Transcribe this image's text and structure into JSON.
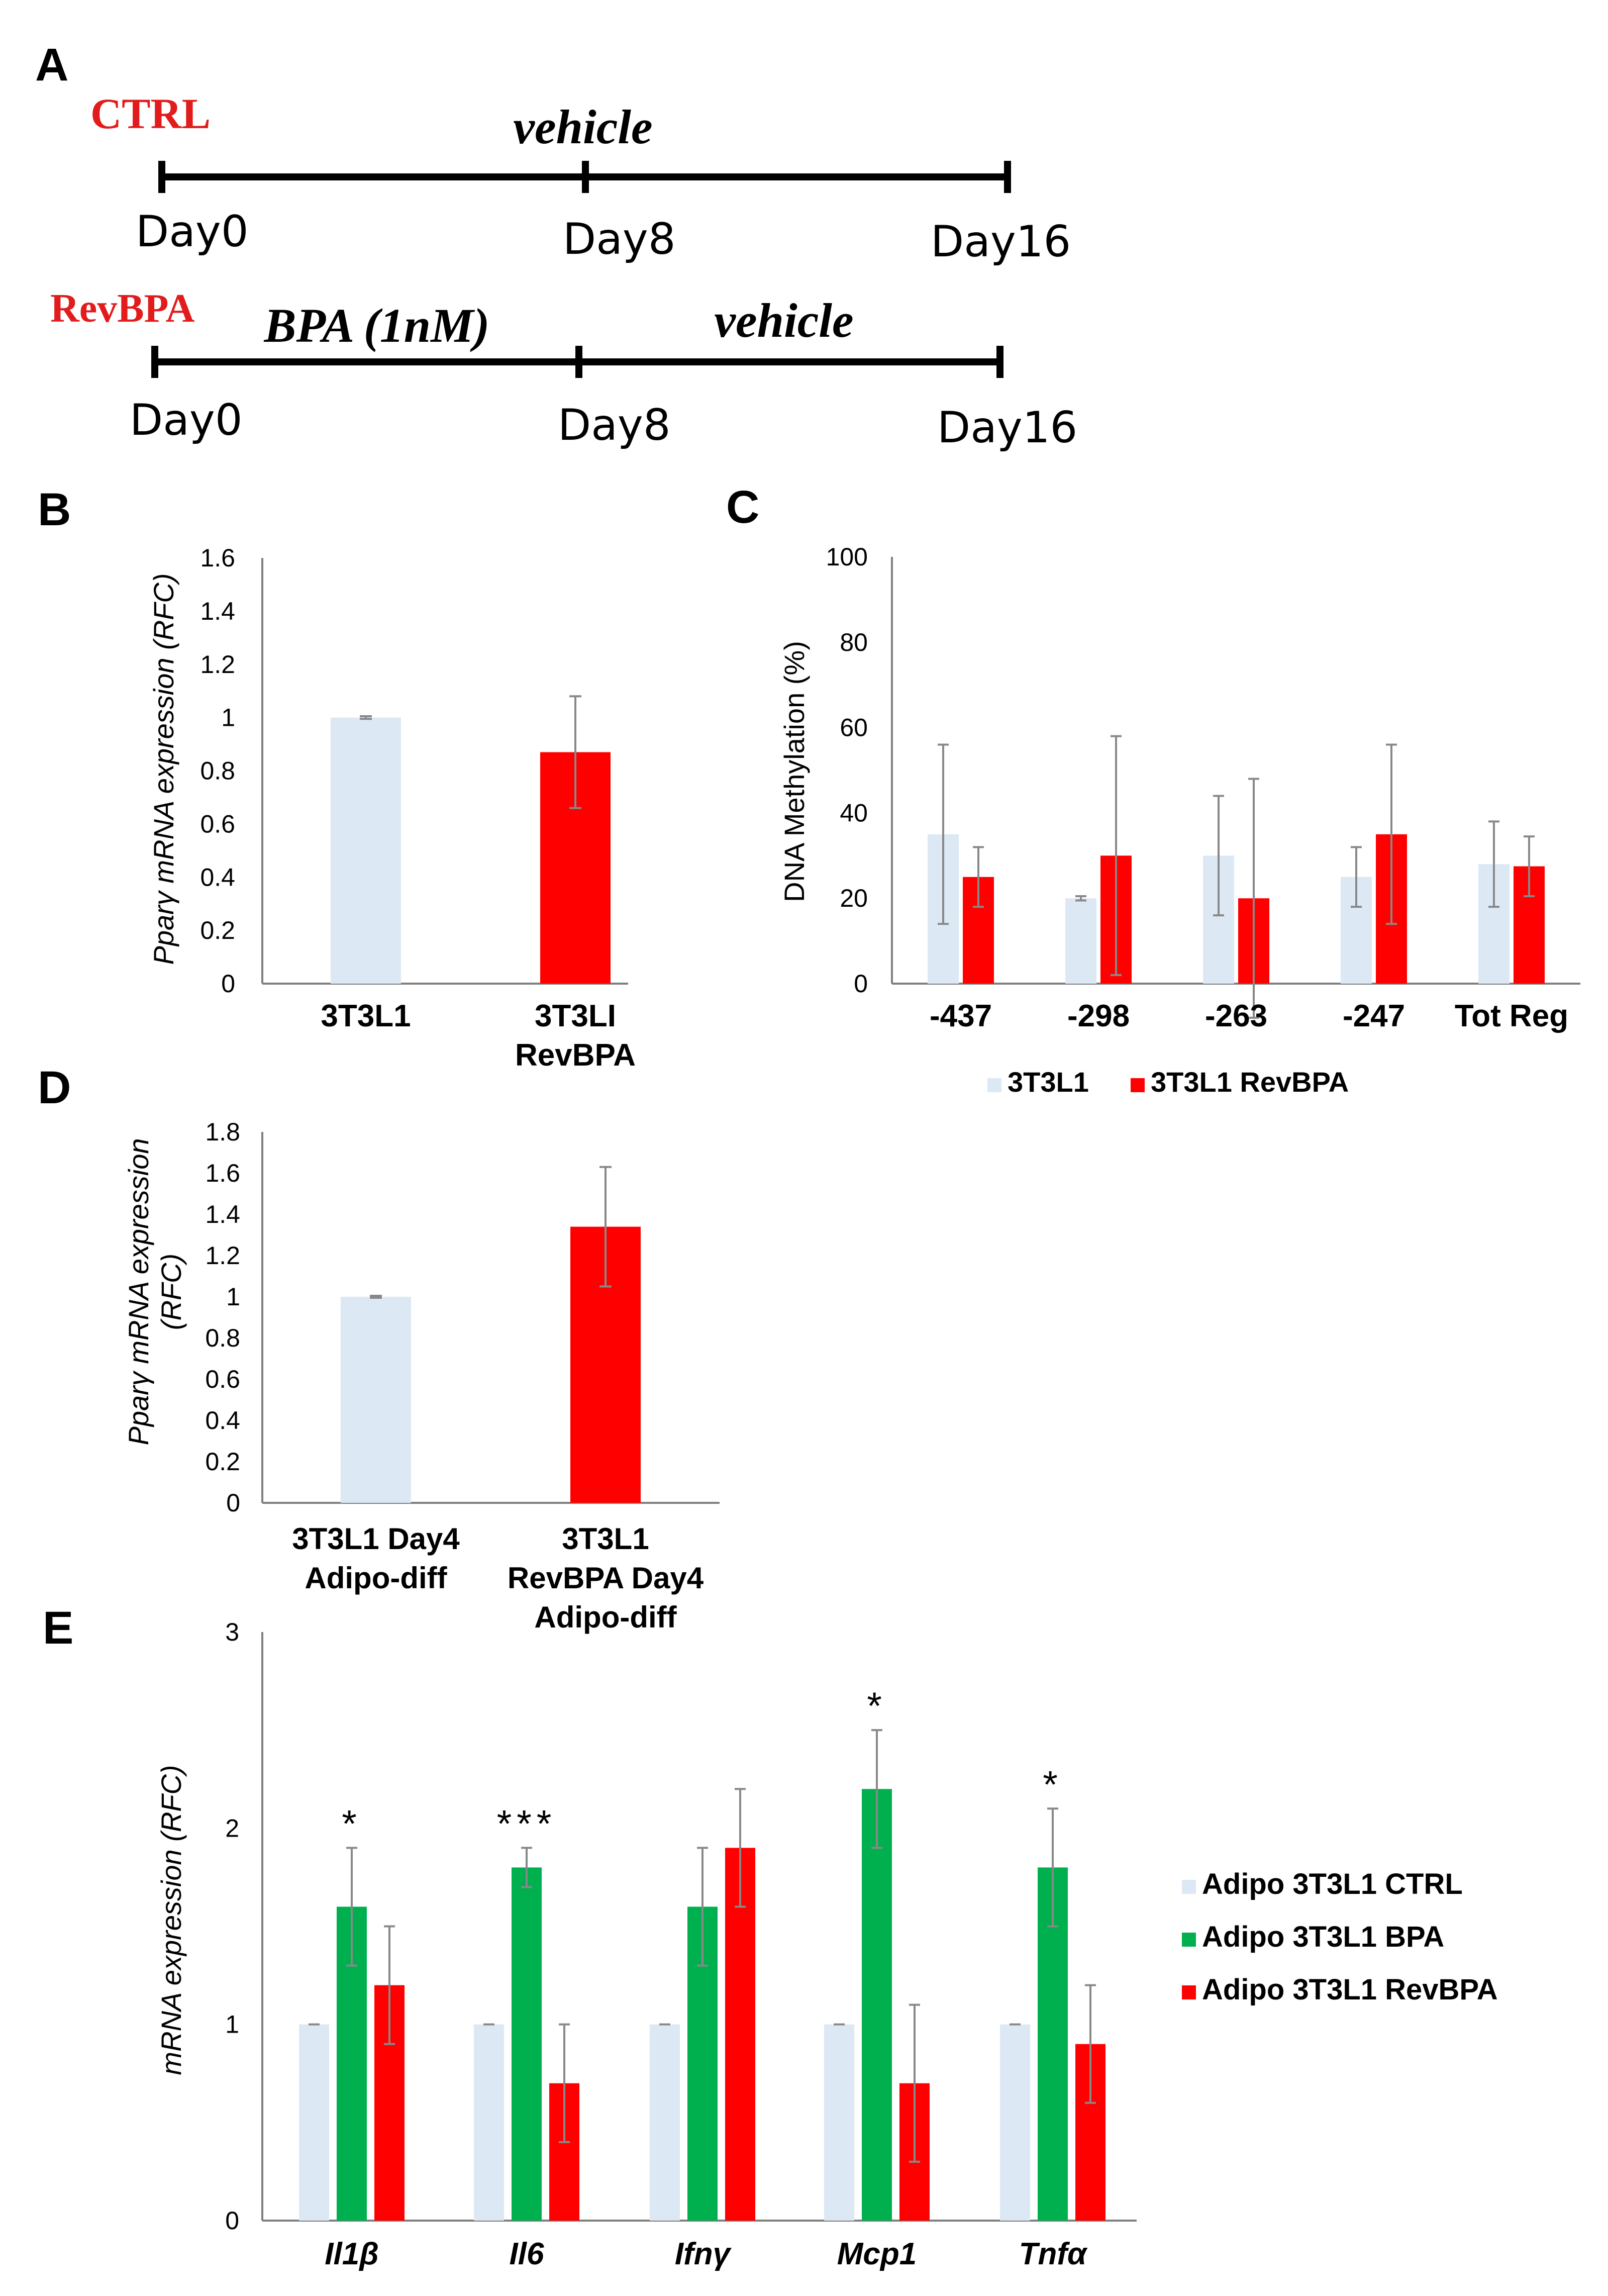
{
  "colors": {
    "ctrl": "#dce9f5",
    "bpa": "#00b04f",
    "revbpa": "#ff0000",
    "label_red": "#e21c1c",
    "axis": "#7f7f7f",
    "err": "#888888",
    "text": "#000000"
  },
  "panel_a": {
    "letter": "A",
    "ctrl_label": "CTRL",
    "ctrl_treatment": "vehicle",
    "ctrl_days": [
      "Day0",
      "Day8",
      "Day16"
    ],
    "rev_label": "RevBPA",
    "rev_treatment_1": "BPA (1nM)",
    "rev_treatment_2": "vehicle",
    "rev_days": [
      "Day0",
      "Day8",
      "Day16"
    ]
  },
  "chart_data": [
    {
      "panel": "B",
      "type": "bar",
      "ylabel_italic": "Pparγ mRNA expression",
      "ylabel_plain": " (RFC)",
      "ylim": [
        0,
        1.6
      ],
      "yticks": [
        "0",
        "0.2",
        "0.4",
        "0.6",
        "0.8",
        "1",
        "1.2",
        "1.4",
        "1.6"
      ],
      "ytick_values": [
        0,
        0.2,
        0.4,
        0.6,
        0.8,
        1,
        1.2,
        1.4,
        1.6
      ],
      "categories": [
        [
          "3T3L1"
        ],
        [
          "3T3LI",
          "RevBPA"
        ]
      ],
      "values": [
        1.0,
        0.87
      ],
      "errors": [
        0.005,
        0.21
      ],
      "bar_colors": [
        "ctrl",
        "revbpa"
      ]
    },
    {
      "panel": "C",
      "type": "bar",
      "ylabel": "DNA Methylation (%)",
      "ylim": [
        0,
        100
      ],
      "yticks": [
        "0",
        "20",
        "40",
        "60",
        "80",
        "100"
      ],
      "ytick_values": [
        0,
        20,
        40,
        60,
        80,
        100
      ],
      "categories": [
        "-437",
        "-298",
        "-263",
        "-247",
        "Tot Reg"
      ],
      "series": [
        {
          "name": "3T3L1",
          "color": "ctrl",
          "values": [
            35,
            20,
            30,
            25,
            28
          ],
          "errors": [
            21,
            0.5,
            14,
            7,
            10
          ]
        },
        {
          "name": "3T3L1 RevBPA",
          "color": "revbpa",
          "values": [
            25,
            30,
            20,
            35,
            27.5
          ],
          "errors": [
            7,
            28,
            28,
            21,
            7
          ]
        }
      ],
      "legend": "bottom"
    },
    {
      "panel": "D",
      "type": "bar",
      "ylabel_line1": "Pparγ mRNA expression",
      "ylabel_line2": "(RFC)",
      "ylim": [
        0,
        1.8
      ],
      "yticks": [
        "0",
        "0.2",
        "0.4",
        "0.6",
        "0.8",
        "1",
        "1.2",
        "1.4",
        "1.6",
        "1.8"
      ],
      "ytick_values": [
        0,
        0.2,
        0.4,
        0.6,
        0.8,
        1,
        1.2,
        1.4,
        1.6,
        1.8
      ],
      "categories": [
        [
          "3T3L1 Day4",
          "Adipo-diff"
        ],
        [
          "3T3L1",
          "RevBPA Day4",
          "Adipo-diff"
        ]
      ],
      "values": [
        1.0,
        1.34
      ],
      "errors": [
        0.005,
        0.29
      ],
      "bar_colors": [
        "ctrl",
        "revbpa"
      ]
    },
    {
      "panel": "E",
      "type": "bar",
      "ylabel_italic": "mRNA expression",
      "ylabel_plain": " (RFC)",
      "ylim": [
        0,
        3
      ],
      "yticks": [
        "0",
        "1",
        "2",
        "3"
      ],
      "ytick_values": [
        0,
        1,
        2,
        3
      ],
      "categories": [
        "Il1β",
        "Il6",
        "Ifnγ",
        "Mcp1",
        "Tnfα"
      ],
      "series": [
        {
          "name": "Adipo 3T3L1 CTRL",
          "color": "ctrl",
          "values": [
            1,
            1,
            1,
            1,
            1
          ],
          "errors": [
            0.005,
            0.005,
            0.005,
            0.005,
            0.005
          ]
        },
        {
          "name": "Adipo 3T3L1 BPA",
          "color": "bpa",
          "values": [
            1.6,
            1.8,
            1.6,
            2.2,
            1.8
          ],
          "errors": [
            0.3,
            0.1,
            0.3,
            0.3,
            0.3
          ]
        },
        {
          "name": "Adipo 3T3L1 RevBPA",
          "color": "revbpa",
          "values": [
            1.2,
            0.7,
            1.9,
            0.7,
            0.9
          ],
          "errors": [
            0.3,
            0.3,
            0.3,
            0.4,
            0.3
          ]
        }
      ],
      "significance": [
        "*",
        "***",
        "",
        "*",
        "*"
      ],
      "legend": "right"
    }
  ]
}
